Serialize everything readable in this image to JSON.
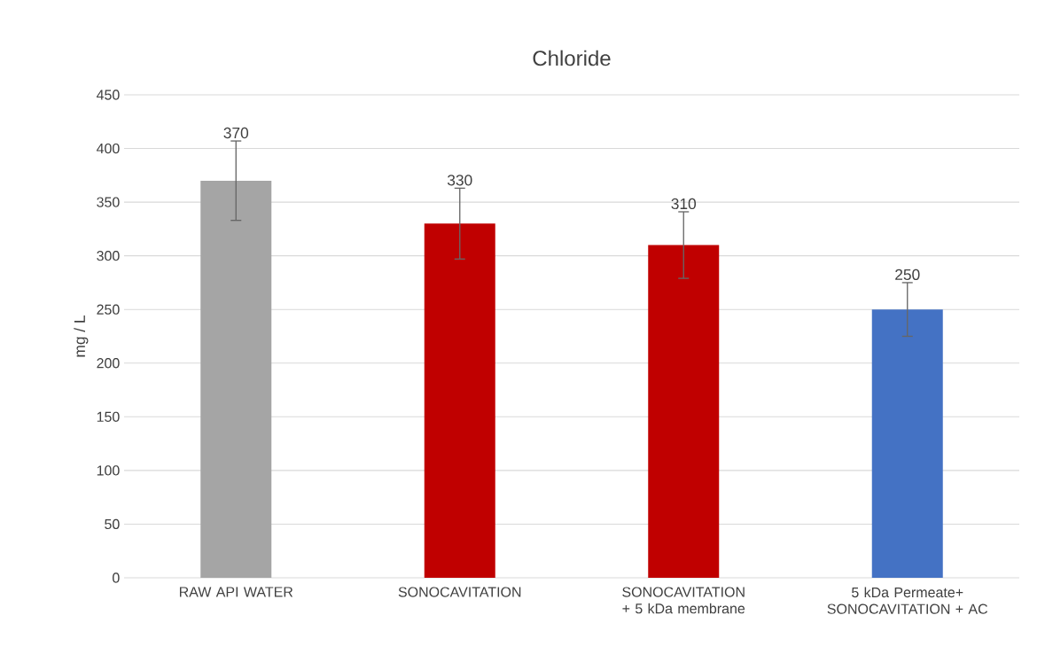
{
  "chart_data": {
    "type": "bar",
    "title": "Chloride",
    "ylabel": "mg / L",
    "categories": [
      "RAW API WATER",
      "SONOCAVITATION",
      "SONOCAVITATION + 5 kDa membrane",
      "5 kDa Permeate+ SONOCAVITATION + AC"
    ],
    "values": [
      370,
      330,
      310,
      250
    ],
    "colors": [
      "#a5a5a5",
      "#c00000",
      "#c00000",
      "#4472c4"
    ],
    "errors": [
      37,
      33,
      31,
      25
    ],
    "data_labels": true,
    "grid": "y",
    "ylim": [
      0,
      450
    ],
    "yticks": [
      0,
      50,
      100,
      150,
      200,
      250,
      300,
      350,
      400,
      450
    ]
  }
}
